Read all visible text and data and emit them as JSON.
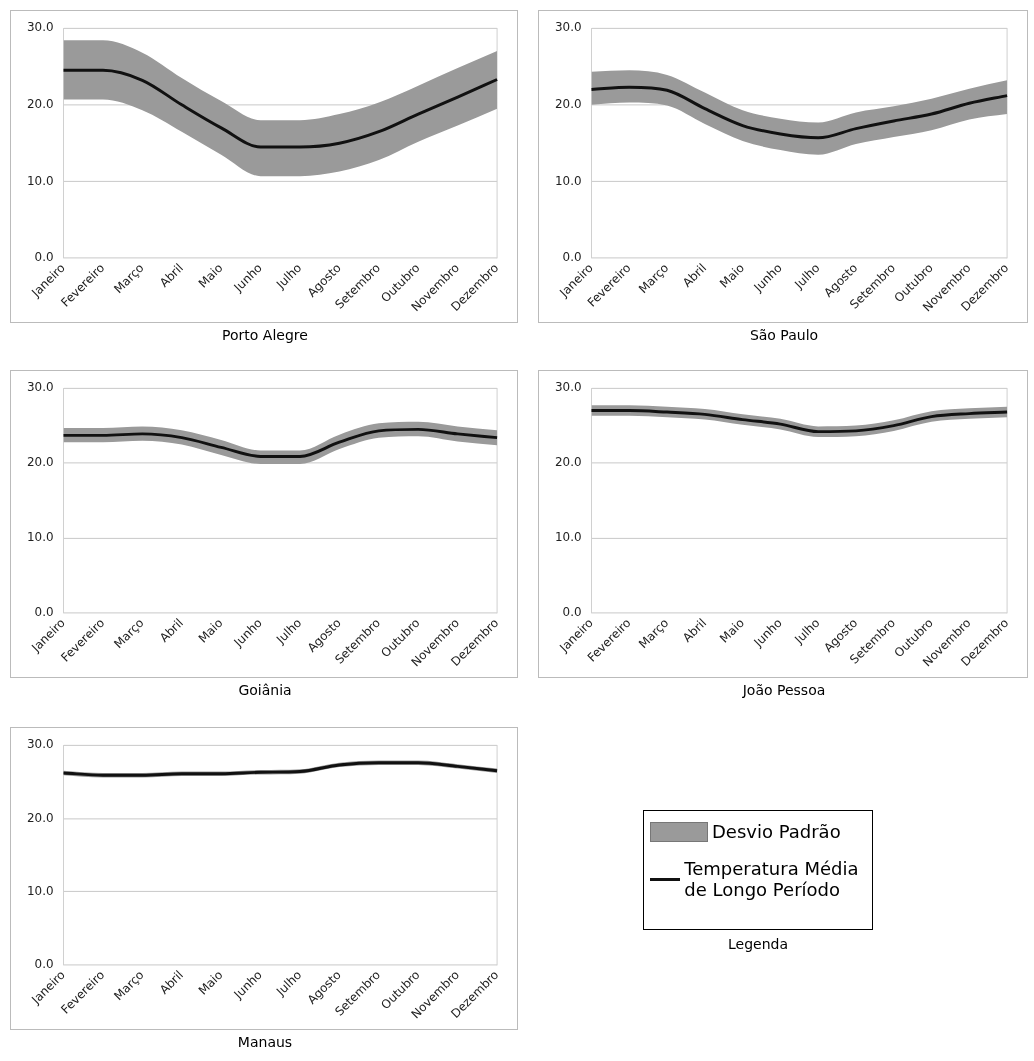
{
  "chart_data": [
    {
      "type": "line",
      "title": "Porto Alegre",
      "categories": [
        "Janeiro",
        "Fevereiro",
        "Março",
        "Abril",
        "Maio",
        "Junho",
        "Julho",
        "Agosto",
        "Setembro",
        "Outubro",
        "Novembro",
        "Dezembro"
      ],
      "ylim": [
        0,
        30
      ],
      "yticks": [
        {
          "value": 0,
          "label": "0.0"
        },
        {
          "value": 10,
          "label": "10.0"
        },
        {
          "value": 20,
          "label": "20.0"
        },
        {
          "value": 30,
          "label": "30.0"
        }
      ],
      "grid": "y",
      "legend": false,
      "marker": "none",
      "series": [
        {
          "color": "#111111",
          "values": [
            24.5,
            24.5,
            23.2,
            20.0,
            17.0,
            14.5,
            14.5,
            15.0,
            16.5,
            18.8,
            21.0,
            23.3
          ],
          "lower": [
            20.7,
            20.7,
            19.3,
            16.5,
            13.5,
            10.7,
            10.7,
            11.3,
            12.8,
            15.2,
            17.3,
            19.5
          ],
          "upper": [
            28.4,
            28.4,
            26.8,
            23.5,
            20.5,
            18.0,
            18.0,
            18.8,
            20.3,
            22.5,
            24.8,
            27.0
          ]
        }
      ]
    },
    {
      "type": "line",
      "title": "São Paulo",
      "categories": [
        "Janeiro",
        "Fevereiro",
        "Março",
        "Abril",
        "Maio",
        "Junho",
        "Julho",
        "Agosto",
        "Setembro",
        "Outubro",
        "Novembro",
        "Dezembro"
      ],
      "ylim": [
        0,
        30
      ],
      "yticks": [
        {
          "value": 0,
          "label": "0.0"
        },
        {
          "value": 10,
          "label": "10.0"
        },
        {
          "value": 20,
          "label": "20.0"
        },
        {
          "value": 30,
          "label": "30.0"
        }
      ],
      "grid": "y",
      "legend": false,
      "marker": "none",
      "series": [
        {
          "color": "#111111",
          "values": [
            22.0,
            22.3,
            21.9,
            19.5,
            17.3,
            16.2,
            15.7,
            16.9,
            17.9,
            18.8,
            20.2,
            21.2
          ],
          "lower": [
            20.0,
            20.3,
            19.9,
            17.5,
            15.3,
            14.1,
            13.5,
            14.9,
            15.8,
            16.7,
            18.1,
            18.8
          ],
          "upper": [
            24.3,
            24.5,
            23.9,
            21.6,
            19.3,
            18.2,
            17.7,
            19.0,
            19.8,
            20.8,
            22.1,
            23.2
          ]
        }
      ]
    },
    {
      "type": "line",
      "title": "Goiânia",
      "categories": [
        "Janeiro",
        "Fevereiro",
        "Março",
        "Abril",
        "Maio",
        "Junho",
        "Julho",
        "Agosto",
        "Setembro",
        "Outubro",
        "Novembro",
        "Dezembro"
      ],
      "ylim": [
        0,
        30
      ],
      "yticks": [
        {
          "value": 0,
          "label": "0.0"
        },
        {
          "value": 10,
          "label": "10.0"
        },
        {
          "value": 20,
          "label": "20.0"
        },
        {
          "value": 30,
          "label": "30.0"
        }
      ],
      "grid": "y",
      "legend": false,
      "marker": "none",
      "series": [
        {
          "color": "#111111",
          "values": [
            23.7,
            23.7,
            23.9,
            23.4,
            22.1,
            20.9,
            20.9,
            22.8,
            24.3,
            24.5,
            23.9,
            23.4
          ],
          "lower": [
            22.8,
            22.8,
            23.0,
            22.5,
            21.1,
            19.9,
            19.9,
            21.9,
            23.4,
            23.6,
            22.9,
            22.4
          ],
          "upper": [
            24.7,
            24.7,
            24.9,
            24.4,
            23.1,
            21.7,
            21.7,
            23.8,
            25.3,
            25.5,
            24.9,
            24.4
          ]
        }
      ]
    },
    {
      "type": "line",
      "title": "João Pessoa",
      "categories": [
        "Janeiro",
        "Fevereiro",
        "Março",
        "Abril",
        "Maio",
        "Junho",
        "Julho",
        "Agosto",
        "Setembro",
        "Outubro",
        "Novembro",
        "Dezembro"
      ],
      "ylim": [
        0,
        30
      ],
      "yticks": [
        {
          "value": 0,
          "label": "0.0"
        },
        {
          "value": 10,
          "label": "10.0"
        },
        {
          "value": 20,
          "label": "20.0"
        },
        {
          "value": 30,
          "label": "30.0"
        }
      ],
      "grid": "y",
      "legend": false,
      "marker": "none",
      "series": [
        {
          "color": "#111111",
          "values": [
            27.0,
            27.0,
            26.8,
            26.5,
            25.8,
            25.2,
            24.2,
            24.3,
            25.0,
            26.2,
            26.6,
            26.8
          ],
          "lower": [
            26.3,
            26.3,
            26.1,
            25.8,
            25.1,
            24.5,
            23.5,
            23.6,
            24.3,
            25.5,
            25.9,
            26.1
          ],
          "upper": [
            27.7,
            27.7,
            27.5,
            27.2,
            26.5,
            25.9,
            24.9,
            25.0,
            25.7,
            26.9,
            27.3,
            27.5
          ]
        }
      ]
    },
    {
      "type": "line",
      "title": "Manaus",
      "categories": [
        "Janeiro",
        "Fevereiro",
        "Março",
        "Abril",
        "Maio",
        "Junho",
        "Julho",
        "Agosto",
        "Setembro",
        "Outubro",
        "Novembro",
        "Dezembro"
      ],
      "ylim": [
        0,
        30
      ],
      "yticks": [
        {
          "value": 0,
          "label": "0.0"
        },
        {
          "value": 10,
          "label": "10.0"
        },
        {
          "value": 20,
          "label": "20.0"
        },
        {
          "value": 30,
          "label": "30.0"
        }
      ],
      "grid": "y",
      "legend": false,
      "marker": "none",
      "series": [
        {
          "color": "#111111",
          "values": [
            26.2,
            25.9,
            25.9,
            26.1,
            26.1,
            26.3,
            26.4,
            27.3,
            27.6,
            27.6,
            27.1,
            26.5
          ],
          "lower": [
            25.9,
            25.6,
            25.6,
            25.8,
            25.8,
            26.0,
            26.1,
            27.0,
            27.3,
            27.3,
            26.8,
            26.2
          ],
          "upper": [
            26.5,
            26.2,
            26.2,
            26.4,
            26.4,
            26.6,
            26.7,
            27.6,
            27.9,
            27.9,
            27.4,
            26.8
          ]
        }
      ]
    },
    {
      "type": "other",
      "title": "Legenda",
      "annotations": [
        "Desvio Padrão",
        "Temperatura Média de Longo Período"
      ]
    }
  ]
}
